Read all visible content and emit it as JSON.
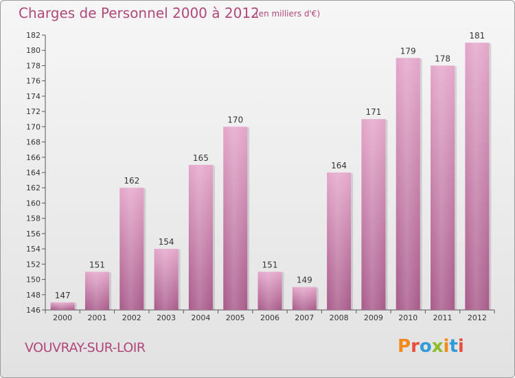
{
  "header": {
    "title": "Charges de Personnel 2000 à 2012",
    "subtitle": "(en milliers d'€)"
  },
  "footer": {
    "city": "VOUVRAY-SUR-LOIR",
    "logo_text": "Proxiti"
  },
  "colors": {
    "title": "#b0487a",
    "bar_light": "#e4a6ca",
    "bar_dark": "#a85a8a",
    "logo_letters": [
      "#f28a1b",
      "#e94e3d",
      "#2f9bd7",
      "#8bbd2a",
      "#f28a1b",
      "#2f9bd7",
      "#e94e3d"
    ]
  },
  "chart_data": {
    "type": "bar",
    "title": "Charges de Personnel 2000 à 2012",
    "subtitle": "(en milliers d'€)",
    "categories": [
      "2000",
      "2001",
      "2002",
      "2003",
      "2004",
      "2005",
      "2006",
      "2007",
      "2008",
      "2009",
      "2010",
      "2011",
      "2012"
    ],
    "values": [
      147,
      151,
      162,
      154,
      165,
      170,
      151,
      149,
      164,
      171,
      179,
      178,
      181
    ],
    "ylim": [
      146,
      182
    ],
    "yticks": [
      146,
      148,
      150,
      152,
      154,
      156,
      158,
      160,
      162,
      164,
      166,
      168,
      170,
      172,
      174,
      176,
      178,
      180,
      182
    ],
    "grid": false,
    "xlabel": "",
    "ylabel": ""
  }
}
